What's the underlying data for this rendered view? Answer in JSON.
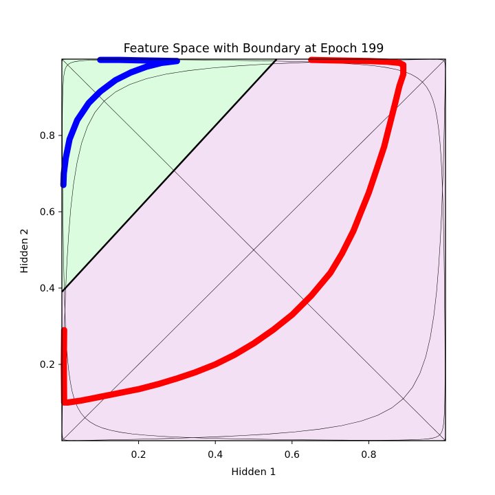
{
  "chart_data": {
    "type": "line",
    "title": "Feature Space with Boundary at Epoch 199",
    "xlabel": "Hidden 1",
    "ylabel": "Hidden 2",
    "xlim": [
      0.0,
      1.0
    ],
    "ylim": [
      0.0,
      1.0
    ],
    "xticks": [
      0.2,
      0.4,
      0.6,
      0.8
    ],
    "yticks": [
      0.2,
      0.4,
      0.6,
      0.8
    ],
    "xtick_labels": [
      "0.2",
      "0.4",
      "0.6",
      "0.8"
    ],
    "ytick_labels": [
      "0.2",
      "0.4",
      "0.6",
      "0.8"
    ],
    "grid": false,
    "regions": [
      {
        "class": "upper-left",
        "color": "#dcfce0"
      },
      {
        "class": "lower-right",
        "color": "#f4e0f4"
      }
    ],
    "boundary": {
      "x": [
        0.0,
        0.56
      ],
      "y": [
        0.39,
        1.0
      ],
      "color": "#000000"
    },
    "series": [
      {
        "color": "#ff0000",
        "x": [
          0.006,
          0.005,
          0.006,
          0.015,
          0.05,
          0.1,
          0.15,
          0.2,
          0.25,
          0.3,
          0.35,
          0.4,
          0.45,
          0.5,
          0.55,
          0.6,
          0.65,
          0.7,
          0.73,
          0.76,
          0.78,
          0.8,
          0.82,
          0.84,
          0.85,
          0.86,
          0.87,
          0.88,
          0.89,
          0.89,
          0.88,
          0.85,
          0.8,
          0.75,
          0.7,
          0.65
        ],
        "y": [
          0.29,
          0.2,
          0.1,
          0.1,
          0.105,
          0.115,
          0.125,
          0.135,
          0.148,
          0.163,
          0.18,
          0.2,
          0.225,
          0.255,
          0.29,
          0.33,
          0.38,
          0.44,
          0.49,
          0.55,
          0.6,
          0.65,
          0.71,
          0.77,
          0.81,
          0.85,
          0.89,
          0.93,
          0.96,
          0.985,
          0.99,
          0.993,
          0.995,
          0.996,
          0.997,
          0.998
        ]
      },
      {
        "color": "#0000ff",
        "x": [
          0.004,
          0.005,
          0.01,
          0.02,
          0.04,
          0.07,
          0.1,
          0.14,
          0.18,
          0.22,
          0.26,
          0.3,
          0.25,
          0.2,
          0.15,
          0.1
        ],
        "y": [
          0.67,
          0.7,
          0.74,
          0.79,
          0.84,
          0.885,
          0.915,
          0.945,
          0.965,
          0.98,
          0.99,
          0.995,
          0.996,
          0.997,
          0.998,
          0.998
        ]
      }
    ]
  }
}
